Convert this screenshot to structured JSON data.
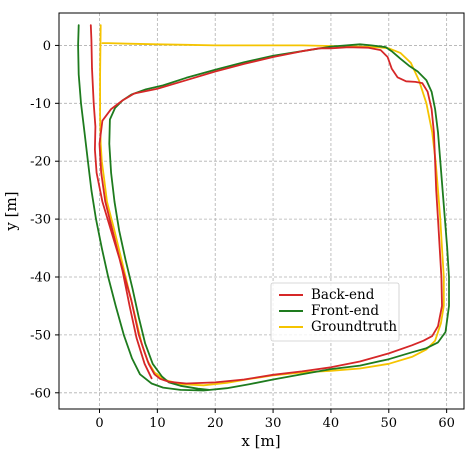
{
  "chart_data": {
    "type": "line",
    "xlabel": "x [m]",
    "ylabel": "y [m]",
    "xlim": [
      -7,
      63
    ],
    "ylim": [
      -62.8,
      5.6
    ],
    "xticks": [
      0,
      10,
      20,
      30,
      40,
      50,
      60
    ],
    "yticks": [
      0,
      -10,
      -20,
      -30,
      -40,
      -50,
      -60
    ],
    "grid": true,
    "legend_position": "lower-right",
    "series": [
      {
        "name": "Back-end",
        "color": "#d62728",
        "points": [
          [
            -1.5,
            3.5
          ],
          [
            -1.4,
            1
          ],
          [
            -1.3,
            -4
          ],
          [
            -1,
            -10
          ],
          [
            -0.7,
            -14
          ],
          [
            -0.8,
            -18
          ],
          [
            -0.5,
            -22
          ],
          [
            0.5,
            -27
          ],
          [
            2,
            -32
          ],
          [
            3.8,
            -38
          ],
          [
            5.5,
            -44
          ],
          [
            6.8,
            -50
          ],
          [
            7.8,
            -53
          ],
          [
            8.5,
            -55
          ],
          [
            9.5,
            -56.8
          ],
          [
            10.5,
            -57.6
          ],
          [
            12,
            -58.1
          ],
          [
            15,
            -58.4
          ],
          [
            20,
            -58.2
          ],
          [
            25,
            -57.7
          ],
          [
            30,
            -56.9
          ],
          [
            35,
            -56.3
          ],
          [
            40,
            -55.6
          ],
          [
            45,
            -54.6
          ],
          [
            50,
            -53.2
          ],
          [
            54,
            -51.8
          ],
          [
            56,
            -51
          ],
          [
            57.5,
            -50.2
          ],
          [
            58.5,
            -48.5
          ],
          [
            59.2,
            -45
          ],
          [
            59.1,
            -40
          ],
          [
            58.8,
            -35
          ],
          [
            58.5,
            -30
          ],
          [
            58.2,
            -25
          ],
          [
            58,
            -20
          ],
          [
            57.8,
            -15
          ],
          [
            57.4,
            -11
          ],
          [
            56.7,
            -8
          ],
          [
            55.8,
            -6.5
          ],
          [
            54.6,
            -6.3
          ],
          [
            53,
            -6.2
          ],
          [
            51.5,
            -5.5
          ],
          [
            50.5,
            -4
          ],
          [
            49.8,
            -2
          ],
          [
            48.6,
            -0.8
          ],
          [
            46.5,
            -0.4
          ],
          [
            43,
            -0.3
          ],
          [
            40,
            -0.5
          ],
          [
            38,
            -0.5
          ],
          [
            35,
            -1
          ],
          [
            30,
            -2
          ],
          [
            25,
            -3.2
          ],
          [
            20,
            -4.5
          ],
          [
            15,
            -6
          ],
          [
            10,
            -7.5
          ],
          [
            6,
            -8.3
          ],
          [
            4,
            -9.5
          ],
          [
            2,
            -11
          ],
          [
            0.5,
            -13
          ],
          [
            0,
            -17
          ],
          [
            0.3,
            -22
          ],
          [
            1,
            -27
          ],
          [
            2.5,
            -33
          ],
          [
            4,
            -39
          ],
          [
            5.2,
            -45
          ],
          [
            6.4,
            -50.5
          ],
          [
            7.8,
            -55
          ],
          [
            9,
            -57.5
          ]
        ]
      },
      {
        "name": "Front-end",
        "color": "#1e7b1e",
        "points": [
          [
            -3.6,
            3.5
          ],
          [
            -3.7,
            0
          ],
          [
            -3.6,
            -5
          ],
          [
            -3.2,
            -10
          ],
          [
            -2.6,
            -15
          ],
          [
            -2,
            -20
          ],
          [
            -1.4,
            -25
          ],
          [
            -0.6,
            -30
          ],
          [
            0.4,
            -35
          ],
          [
            1.5,
            -40
          ],
          [
            2.8,
            -45
          ],
          [
            4.2,
            -50
          ],
          [
            5.6,
            -54
          ],
          [
            7,
            -56.8
          ],
          [
            9,
            -58.4
          ],
          [
            11,
            -59.1
          ],
          [
            14,
            -59.5
          ],
          [
            18,
            -59.6
          ],
          [
            22,
            -59.2
          ],
          [
            26,
            -58.5
          ],
          [
            30,
            -57.7
          ],
          [
            35,
            -56.8
          ],
          [
            40,
            -55.9
          ],
          [
            45,
            -55.3
          ],
          [
            50,
            -54.2
          ],
          [
            54,
            -53
          ],
          [
            56.5,
            -52.3
          ],
          [
            58.5,
            -51.3
          ],
          [
            59.8,
            -49.5
          ],
          [
            60.4,
            -45
          ],
          [
            60.4,
            -40
          ],
          [
            60.1,
            -35
          ],
          [
            59.7,
            -30
          ],
          [
            59.3,
            -25
          ],
          [
            58.9,
            -20
          ],
          [
            58.5,
            -15
          ],
          [
            58,
            -11
          ],
          [
            57.4,
            -8
          ],
          [
            56.5,
            -6
          ],
          [
            55,
            -4.5
          ],
          [
            53.5,
            -3.5
          ],
          [
            52,
            -2.3
          ],
          [
            50.5,
            -1
          ],
          [
            49.5,
            -0.3
          ],
          [
            47,
            0
          ],
          [
            45,
            0.2
          ],
          [
            40,
            -0.2
          ],
          [
            35,
            -1
          ],
          [
            30,
            -1.8
          ],
          [
            25,
            -2.9
          ],
          [
            20,
            -4.2
          ],
          [
            15,
            -5.6
          ],
          [
            11,
            -6.9
          ],
          [
            8,
            -7.6
          ],
          [
            5.5,
            -8.5
          ],
          [
            4,
            -9.5
          ],
          [
            2.7,
            -10.8
          ],
          [
            1.8,
            -12.8
          ],
          [
            1.7,
            -17
          ],
          [
            2,
            -22
          ],
          [
            2.6,
            -27
          ],
          [
            3.4,
            -32
          ],
          [
            4.5,
            -37
          ],
          [
            5.7,
            -42
          ],
          [
            6.8,
            -47
          ],
          [
            7.9,
            -51.5
          ],
          [
            9.2,
            -55
          ],
          [
            10.8,
            -57.2
          ],
          [
            12,
            -58.2
          ],
          [
            14,
            -58.8
          ],
          [
            17,
            -59.3
          ],
          [
            19,
            -59.5
          ]
        ]
      },
      {
        "name": "Groundtruth",
        "color": "#f5c400",
        "points": [
          [
            0.2,
            3.5
          ],
          [
            0.1,
            -5
          ],
          [
            0.1,
            -12
          ],
          [
            0.2,
            -17
          ],
          [
            0.4,
            -20
          ],
          [
            0.8,
            -23
          ],
          [
            1.3,
            -27
          ],
          [
            2.6,
            -32
          ],
          [
            3.8,
            -37
          ],
          [
            5,
            -42
          ],
          [
            6.2,
            -47
          ],
          [
            7.3,
            -51.5
          ],
          [
            8.3,
            -54.5
          ],
          [
            9.5,
            -56.5
          ],
          [
            11.4,
            -57.8
          ],
          [
            14,
            -58.5
          ],
          [
            18,
            -58.7
          ],
          [
            22,
            -58.3
          ],
          [
            26,
            -57.6
          ],
          [
            30,
            -57
          ],
          [
            35,
            -56.5
          ],
          [
            40,
            -56.2
          ],
          [
            45,
            -55.8
          ],
          [
            50,
            -55
          ],
          [
            54,
            -53.8
          ],
          [
            56.5,
            -52.5
          ],
          [
            58,
            -51
          ],
          [
            59,
            -48
          ],
          [
            59.5,
            -45
          ],
          [
            59.5,
            -40
          ],
          [
            59.2,
            -35
          ],
          [
            58.9,
            -30
          ],
          [
            58.5,
            -25
          ],
          [
            58.1,
            -20
          ],
          [
            57.5,
            -15
          ],
          [
            56.5,
            -10
          ],
          [
            55.2,
            -6
          ],
          [
            53.8,
            -3
          ],
          [
            52,
            -1.3
          ],
          [
            50,
            -0.5
          ],
          [
            48,
            -0.3
          ],
          [
            45,
            -0.2
          ],
          [
            40,
            -0.1
          ],
          [
            35,
            0
          ],
          [
            30,
            0
          ],
          [
            25,
            0
          ],
          [
            20,
            0
          ],
          [
            15,
            0.1
          ],
          [
            10,
            0.2
          ],
          [
            5,
            0.3
          ],
          [
            1.5,
            0.4
          ],
          [
            0.5,
            0.4
          ]
        ]
      }
    ]
  },
  "legend": {
    "items": [
      {
        "label": "Back-end",
        "color": "#d62728"
      },
      {
        "label": "Front-end",
        "color": "#1e7b1e"
      },
      {
        "label": "Groundtruth",
        "color": "#f5c400"
      }
    ]
  }
}
